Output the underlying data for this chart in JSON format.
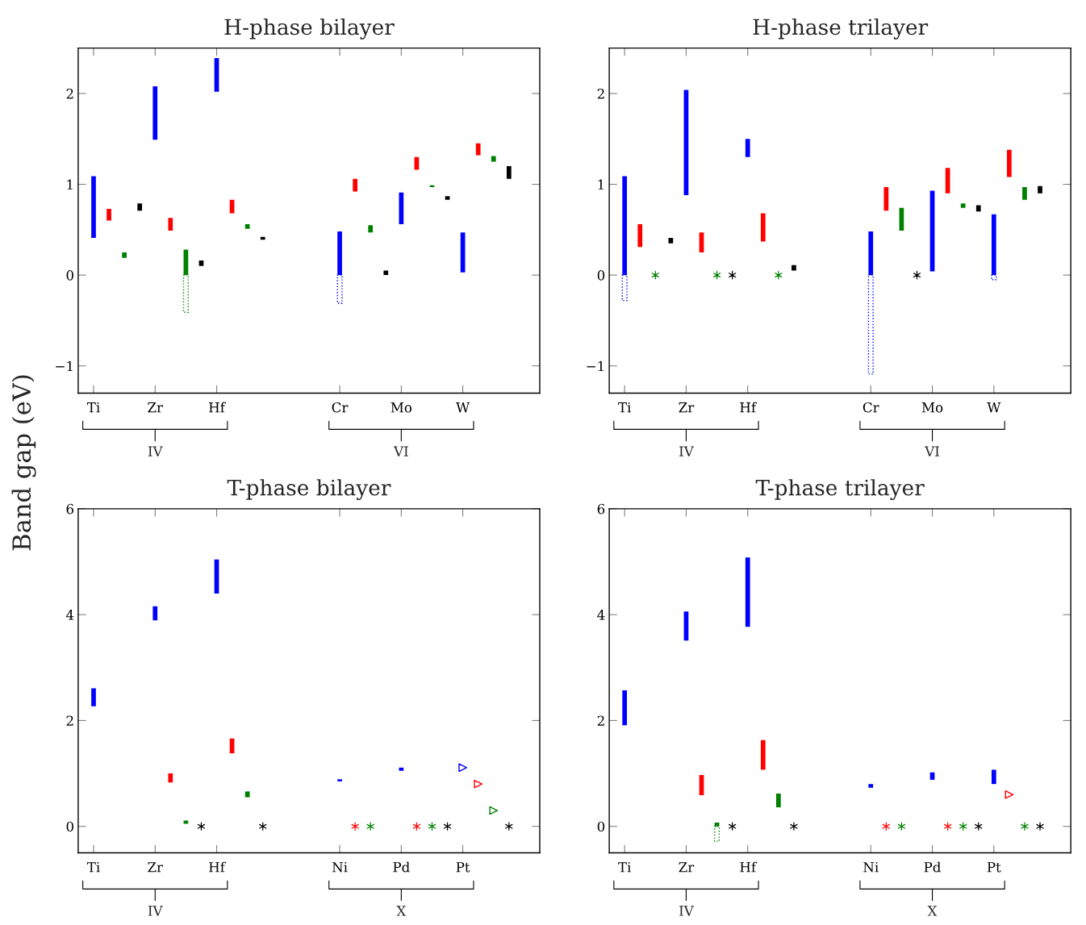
{
  "chart_data": [
    {
      "type": "bar",
      "title": "H-phase bilayer",
      "ylabel": "Band gap (eV)",
      "categories": [
        "Ti",
        null,
        null,
        null,
        "Zr",
        null,
        null,
        null,
        "Hf",
        null,
        null,
        null,
        null,
        null,
        null,
        null,
        "Cr",
        null,
        null,
        null,
        "Mo",
        null,
        null,
        null,
        "W",
        null,
        null,
        null
      ],
      "ylim": [
        -1.3,
        2.5
      ],
      "yticks": [
        {
          "value": -1,
          "label": "−1"
        },
        0,
        1,
        2
      ],
      "annotations": [
        "IV",
        "VI"
      ],
      "series": [
        {
          "color": "#0000ff",
          "values": [
            0.68,
            null,
            null,
            null,
            0.59,
            null,
            null,
            null,
            0.37,
            null,
            null,
            null,
            null,
            null,
            null,
            null,
            0.48,
            null,
            null,
            null,
            0.35,
            null,
            null,
            null,
            0.44,
            null,
            null,
            null
          ],
          "base": [
            0.41,
            null,
            null,
            null,
            1.49,
            null,
            null,
            null,
            2.02,
            null,
            null,
            null,
            null,
            null,
            null,
            null,
            0,
            null,
            null,
            null,
            0.56,
            null,
            null,
            null,
            0.03,
            null,
            null,
            null
          ]
        },
        {
          "color": "#ff0000",
          "values": [
            null,
            0.13,
            null,
            null,
            null,
            0.14,
            null,
            null,
            null,
            0.15,
            null,
            null,
            null,
            null,
            null,
            null,
            null,
            0.14,
            null,
            null,
            null,
            0.14,
            null,
            null,
            null,
            0.13,
            null,
            null
          ],
          "base": [
            null,
            0.6,
            null,
            null,
            null,
            0.49,
            null,
            null,
            null,
            0.68,
            null,
            null,
            null,
            null,
            null,
            null,
            null,
            0.92,
            null,
            null,
            null,
            1.16,
            null,
            null,
            null,
            1.32,
            null,
            null
          ]
        },
        {
          "color": "#008000",
          "values": [
            null,
            null,
            0.06,
            null,
            null,
            null,
            0.28,
            null,
            null,
            null,
            0.05,
            null,
            null,
            null,
            null,
            null,
            null,
            null,
            0.08,
            null,
            null,
            null,
            0.02,
            null,
            null,
            null,
            0.06,
            null
          ],
          "base": [
            null,
            null,
            0.19,
            null,
            null,
            null,
            0,
            null,
            null,
            null,
            0.51,
            null,
            null,
            null,
            null,
            null,
            null,
            null,
            0.47,
            null,
            null,
            null,
            0.97,
            null,
            null,
            null,
            1.25,
            null
          ]
        },
        {
          "color": "#000000",
          "values": [
            null,
            null,
            null,
            0.08,
            null,
            null,
            null,
            0.06,
            null,
            null,
            null,
            0.03,
            null,
            null,
            null,
            null,
            null,
            null,
            null,
            0.05,
            null,
            null,
            null,
            0.04,
            null,
            null,
            null,
            0.14
          ],
          "base": [
            null,
            null,
            null,
            0.71,
            null,
            null,
            null,
            0.1,
            null,
            null,
            null,
            0.39,
            null,
            null,
            null,
            null,
            null,
            null,
            null,
            0,
            null,
            null,
            null,
            0.83,
            null,
            null,
            null,
            1.06
          ]
        },
        {
          "color": "#008000",
          "line_style": "dotted",
          "values": [
            null,
            null,
            null,
            null,
            null,
            null,
            -0.41,
            null,
            null,
            null,
            null,
            null,
            null,
            null,
            null,
            null,
            null,
            null,
            null,
            null,
            null,
            null,
            null,
            null,
            null,
            null,
            null,
            null
          ],
          "base": [
            null,
            null,
            null,
            null,
            null,
            null,
            0,
            null,
            null,
            null,
            null,
            null,
            null,
            null,
            null,
            null,
            null,
            null,
            null,
            null,
            null,
            null,
            null,
            null,
            null,
            null,
            null,
            null
          ]
        },
        {
          "color": "#0000ff",
          "line_style": "dotted",
          "values": [
            null,
            null,
            null,
            null,
            null,
            null,
            null,
            null,
            null,
            null,
            null,
            null,
            null,
            null,
            null,
            null,
            -0.31,
            null,
            null,
            null,
            null,
            null,
            null,
            null,
            null,
            null,
            null,
            null
          ],
          "base": [
            null,
            null,
            null,
            null,
            null,
            null,
            null,
            null,
            null,
            null,
            null,
            null,
            null,
            null,
            null,
            null,
            0,
            null,
            null,
            null,
            null,
            null,
            null,
            null,
            null,
            null,
            null,
            null
          ]
        }
      ]
    },
    {
      "type": "bar",
      "title": "H-phase trilayer",
      "categories": [
        "Ti",
        null,
        null,
        null,
        "Zr",
        null,
        null,
        null,
        "Hf",
        null,
        null,
        null,
        null,
        null,
        null,
        null,
        "Cr",
        null,
        null,
        null,
        "Mo",
        null,
        null,
        null,
        "W",
        null,
        null,
        null
      ],
      "ylim": [
        -1.3,
        2.5
      ],
      "yticks": [
        {
          "value": -1,
          "label": "−1"
        },
        0,
        1,
        2
      ],
      "annotations": [
        "IV",
        "VI"
      ],
      "series": [
        {
          "color": "#0000ff",
          "values": [
            1.09,
            null,
            null,
            null,
            1.16,
            null,
            null,
            null,
            0.2,
            null,
            null,
            null,
            null,
            null,
            null,
            null,
            0.48,
            null,
            null,
            null,
            0.89,
            null,
            null,
            null,
            0.67,
            null,
            null,
            null
          ],
          "base": [
            0,
            null,
            null,
            null,
            0.88,
            null,
            null,
            null,
            1.3,
            null,
            null,
            null,
            null,
            null,
            null,
            null,
            0,
            null,
            null,
            null,
            0.04,
            null,
            null,
            null,
            0,
            null,
            null,
            null
          ]
        },
        {
          "color": "#ff0000",
          "values": [
            null,
            0.25,
            null,
            null,
            null,
            0.22,
            null,
            null,
            null,
            0.31,
            null,
            null,
            null,
            null,
            null,
            null,
            null,
            0.26,
            null,
            null,
            null,
            0.28,
            null,
            null,
            null,
            0.3,
            null,
            null
          ],
          "base": [
            null,
            0.31,
            null,
            null,
            null,
            0.25,
            null,
            null,
            null,
            0.37,
            null,
            null,
            null,
            null,
            null,
            null,
            null,
            0.71,
            null,
            null,
            null,
            0.9,
            null,
            null,
            null,
            1.08,
            null,
            null
          ]
        },
        {
          "color": "#008000",
          "values": [
            null,
            null,
            null,
            null,
            null,
            null,
            null,
            null,
            null,
            null,
            null,
            null,
            null,
            null,
            null,
            null,
            null,
            null,
            0.25,
            null,
            null,
            null,
            0.05,
            null,
            null,
            null,
            0.14,
            null
          ],
          "base": [
            null,
            null,
            null,
            null,
            null,
            null,
            null,
            null,
            null,
            null,
            null,
            null,
            null,
            null,
            null,
            null,
            null,
            null,
            0.49,
            null,
            null,
            null,
            0.74,
            null,
            null,
            null,
            0.83,
            null
          ]
        },
        {
          "color": "#000000",
          "values": [
            null,
            null,
            null,
            0.06,
            null,
            null,
            null,
            null,
            null,
            null,
            null,
            0.06,
            null,
            null,
            null,
            null,
            null,
            null,
            null,
            null,
            null,
            null,
            null,
            0.07,
            null,
            null,
            null,
            0.08
          ],
          "base": [
            null,
            null,
            null,
            0.35,
            null,
            null,
            null,
            null,
            null,
            null,
            null,
            0.05,
            null,
            null,
            null,
            null,
            null,
            null,
            null,
            null,
            null,
            null,
            null,
            0.7,
            null,
            null,
            null,
            0.9
          ]
        },
        {
          "type": "scatter",
          "marker": "cross",
          "color": "#008000",
          "values": [
            null,
            null,
            0,
            null,
            null,
            null,
            0,
            null,
            null,
            null,
            0,
            null,
            null,
            null,
            null,
            null,
            null,
            null,
            null,
            null,
            null,
            null,
            null,
            null,
            null,
            null,
            null,
            null
          ]
        },
        {
          "type": "scatter",
          "marker": "cross",
          "color": "#000000",
          "values": [
            null,
            null,
            null,
            null,
            null,
            null,
            null,
            0,
            null,
            null,
            null,
            null,
            null,
            null,
            null,
            null,
            null,
            null,
            null,
            0,
            null,
            null,
            null,
            null,
            null,
            null,
            null,
            null
          ]
        },
        {
          "color": "#0000ff",
          "line_style": "dotted",
          "values": [
            -0.28,
            null,
            null,
            null,
            null,
            null,
            null,
            null,
            null,
            null,
            null,
            null,
            null,
            null,
            null,
            null,
            -1.09,
            null,
            null,
            null,
            null,
            null,
            null,
            null,
            -0.05,
            null,
            null,
            null
          ],
          "base": [
            0,
            null,
            null,
            null,
            null,
            null,
            null,
            null,
            null,
            null,
            null,
            null,
            null,
            null,
            null,
            null,
            0,
            null,
            null,
            null,
            null,
            null,
            null,
            null,
            0,
            null,
            null,
            null
          ]
        }
      ]
    },
    {
      "type": "bar",
      "title": "T-phase bilayer",
      "categories": [
        "Ti",
        null,
        null,
        null,
        "Zr",
        null,
        null,
        null,
        "Hf",
        null,
        null,
        null,
        null,
        null,
        null,
        null,
        "Ni",
        null,
        null,
        null,
        "Pd",
        null,
        null,
        null,
        "Pt",
        null,
        null,
        null
      ],
      "ylim": [
        -0.5,
        6
      ],
      "yticks": [
        0,
        2,
        4,
        6
      ],
      "annotations": [
        "IV",
        "X"
      ],
      "series": [
        {
          "color": "#0000ff",
          "values": [
            0.34,
            null,
            null,
            null,
            0.27,
            null,
            null,
            null,
            0.64,
            null,
            null,
            null,
            null,
            null,
            null,
            null,
            0.04,
            null,
            null,
            null,
            0.06,
            null,
            null,
            null,
            null,
            null,
            null,
            null
          ],
          "base": [
            2.27,
            null,
            null,
            null,
            3.89,
            null,
            null,
            null,
            4.4,
            null,
            null,
            null,
            null,
            null,
            null,
            null,
            0.85,
            null,
            null,
            null,
            1.05,
            null,
            null,
            null,
            null,
            null,
            null,
            null
          ]
        },
        {
          "color": "#ff0000",
          "values": [
            null,
            null,
            null,
            null,
            null,
            0.17,
            null,
            null,
            null,
            0.28,
            null,
            null,
            null,
            null,
            null,
            null,
            null,
            null,
            null,
            null,
            null,
            null,
            null,
            null,
            null,
            null,
            null,
            null
          ],
          "base": [
            null,
            null,
            null,
            null,
            null,
            0.83,
            null,
            null,
            null,
            1.38,
            null,
            null,
            null,
            null,
            null,
            null,
            null,
            null,
            null,
            null,
            null,
            null,
            null,
            null,
            null,
            null,
            null,
            null
          ]
        },
        {
          "color": "#008000",
          "values": [
            null,
            null,
            null,
            null,
            null,
            null,
            0.06,
            null,
            null,
            null,
            0.11,
            null,
            null,
            null,
            null,
            null,
            null,
            null,
            null,
            null,
            null,
            null,
            null,
            null,
            null,
            null,
            null,
            null
          ],
          "base": [
            null,
            null,
            null,
            null,
            null,
            null,
            0.05,
            null,
            null,
            null,
            0.55,
            null,
            null,
            null,
            null,
            null,
            null,
            null,
            null,
            null,
            null,
            null,
            null,
            null,
            null,
            null,
            null,
            null
          ]
        },
        {
          "type": "scatter",
          "marker": "cross",
          "color": "#000000",
          "values": [
            null,
            null,
            null,
            null,
            null,
            null,
            null,
            0,
            null,
            null,
            null,
            0,
            null,
            null,
            null,
            null,
            null,
            null,
            null,
            null,
            null,
            null,
            null,
            0,
            null,
            null,
            null,
            0
          ]
        },
        {
          "type": "scatter",
          "marker": "cross",
          "color": "#ff0000",
          "values": [
            null,
            null,
            null,
            null,
            null,
            null,
            null,
            null,
            null,
            null,
            null,
            null,
            null,
            null,
            null,
            null,
            null,
            0,
            null,
            null,
            null,
            0,
            null,
            null,
            null,
            null,
            null,
            null
          ]
        },
        {
          "type": "scatter",
          "marker": "cross",
          "color": "#008000",
          "values": [
            null,
            null,
            null,
            null,
            null,
            null,
            null,
            null,
            null,
            null,
            null,
            null,
            null,
            null,
            null,
            null,
            null,
            null,
            0,
            null,
            null,
            null,
            0,
            null,
            null,
            null,
            null,
            null
          ]
        },
        {
          "type": "scatter",
          "marker": "triangle",
          "color": "#0000ff",
          "values": [
            null,
            null,
            null,
            null,
            null,
            null,
            null,
            null,
            null,
            null,
            null,
            null,
            null,
            null,
            null,
            null,
            null,
            null,
            null,
            null,
            null,
            null,
            null,
            null,
            1.11,
            null,
            null,
            null
          ]
        },
        {
          "type": "scatter",
          "marker": "triangle",
          "color": "#ff0000",
          "values": [
            null,
            null,
            null,
            null,
            null,
            null,
            null,
            null,
            null,
            null,
            null,
            null,
            null,
            null,
            null,
            null,
            null,
            null,
            null,
            null,
            null,
            null,
            null,
            null,
            null,
            0.8,
            null,
            null
          ]
        },
        {
          "type": "scatter",
          "marker": "triangle",
          "color": "#008000",
          "values": [
            null,
            null,
            null,
            null,
            null,
            null,
            null,
            null,
            null,
            null,
            null,
            null,
            null,
            null,
            null,
            null,
            null,
            null,
            null,
            null,
            null,
            null,
            null,
            null,
            null,
            null,
            0.3,
            null
          ]
        }
      ]
    },
    {
      "type": "bar",
      "title": "T-phase trilayer",
      "categories": [
        "Ti",
        null,
        null,
        null,
        "Zr",
        null,
        null,
        null,
        "Hf",
        null,
        null,
        null,
        null,
        null,
        null,
        null,
        "Ni",
        null,
        null,
        null,
        "Pd",
        null,
        null,
        null,
        "Pt",
        null,
        null,
        null
      ],
      "ylim": [
        -0.5,
        6
      ],
      "yticks": [
        0,
        2,
        4,
        6
      ],
      "annotations": [
        "IV",
        "X"
      ],
      "series": [
        {
          "color": "#0000ff",
          "values": [
            0.66,
            null,
            null,
            null,
            0.55,
            null,
            null,
            null,
            1.31,
            null,
            null,
            null,
            null,
            null,
            null,
            null,
            0.07,
            null,
            null,
            null,
            0.14,
            null,
            null,
            null,
            0.27,
            null,
            null,
            null
          ],
          "base": [
            1.91,
            null,
            null,
            null,
            3.51,
            null,
            null,
            null,
            3.77,
            null,
            null,
            null,
            null,
            null,
            null,
            null,
            0.73,
            null,
            null,
            null,
            0.88,
            null,
            null,
            null,
            0.8,
            null,
            null,
            null
          ]
        },
        {
          "color": "#ff0000",
          "values": [
            null,
            null,
            null,
            null,
            null,
            0.38,
            null,
            null,
            null,
            0.56,
            null,
            null,
            null,
            null,
            null,
            null,
            null,
            null,
            null,
            null,
            null,
            null,
            null,
            null,
            null,
            null,
            null,
            null
          ],
          "base": [
            null,
            null,
            null,
            null,
            null,
            0.59,
            null,
            null,
            null,
            1.07,
            null,
            null,
            null,
            null,
            null,
            null,
            null,
            null,
            null,
            null,
            null,
            null,
            null,
            null,
            null,
            null,
            null,
            null
          ]
        },
        {
          "color": "#008000",
          "values": [
            null,
            null,
            null,
            null,
            null,
            null,
            0.07,
            null,
            null,
            null,
            0.26,
            null,
            null,
            null,
            null,
            null,
            null,
            null,
            null,
            null,
            null,
            null,
            null,
            null,
            null,
            null,
            null,
            null
          ],
          "base": [
            null,
            null,
            null,
            null,
            null,
            null,
            0,
            null,
            null,
            null,
            0.36,
            null,
            null,
            null,
            null,
            null,
            null,
            null,
            null,
            null,
            null,
            null,
            null,
            null,
            null,
            null,
            null,
            null
          ]
        },
        {
          "color": "#008000",
          "line_style": "dotted",
          "values": [
            null,
            null,
            null,
            null,
            null,
            null,
            -0.28,
            null,
            null,
            null,
            null,
            null,
            null,
            null,
            null,
            null,
            null,
            null,
            null,
            null,
            null,
            null,
            null,
            null,
            null,
            null,
            null,
            null
          ],
          "base": [
            null,
            null,
            null,
            null,
            null,
            null,
            0,
            null,
            null,
            null,
            null,
            null,
            null,
            null,
            null,
            null,
            null,
            null,
            null,
            null,
            null,
            null,
            null,
            null,
            null,
            null,
            null,
            null
          ]
        },
        {
          "type": "scatter",
          "marker": "cross",
          "color": "#000000",
          "values": [
            null,
            null,
            null,
            null,
            null,
            null,
            null,
            0,
            null,
            null,
            null,
            0,
            null,
            null,
            null,
            null,
            null,
            null,
            null,
            null,
            null,
            null,
            null,
            0,
            null,
            null,
            null,
            0
          ]
        },
        {
          "type": "scatter",
          "marker": "cross",
          "color": "#ff0000",
          "values": [
            null,
            null,
            null,
            null,
            null,
            null,
            null,
            null,
            null,
            null,
            null,
            null,
            null,
            null,
            null,
            null,
            null,
            0,
            null,
            null,
            null,
            0,
            null,
            null,
            null,
            null,
            null,
            null
          ]
        },
        {
          "type": "scatter",
          "marker": "cross",
          "color": "#008000",
          "values": [
            null,
            null,
            null,
            null,
            null,
            null,
            null,
            null,
            null,
            null,
            null,
            null,
            null,
            null,
            null,
            null,
            null,
            null,
            0,
            null,
            null,
            null,
            0,
            null,
            null,
            null,
            0,
            null
          ]
        },
        {
          "type": "scatter",
          "marker": "triangle",
          "color": "#ff0000",
          "values": [
            null,
            null,
            null,
            null,
            null,
            null,
            null,
            null,
            null,
            null,
            null,
            null,
            null,
            null,
            null,
            null,
            null,
            null,
            null,
            null,
            null,
            null,
            null,
            null,
            null,
            0.6,
            null,
            null
          ]
        }
      ]
    }
  ]
}
